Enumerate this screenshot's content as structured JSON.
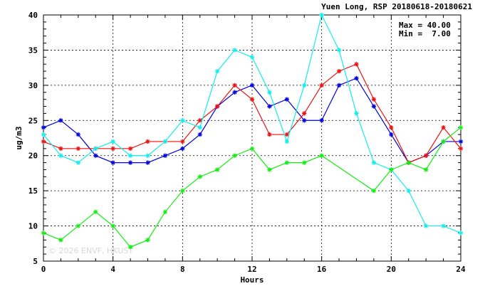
{
  "chart_data": {
    "type": "line",
    "title": "Yuen Long, RSP 20180618-20180621",
    "xlabel": "Hours",
    "ylabel": "ug/m3",
    "xlim": [
      0,
      24
    ],
    "ylim": [
      5,
      40
    ],
    "xticks": [
      0,
      4,
      8,
      12,
      16,
      20,
      24
    ],
    "yticks": [
      5,
      10,
      15,
      20,
      25,
      30,
      35,
      40
    ],
    "grid": true,
    "stats": {
      "max_label": "Max = 40.00",
      "min_label": "Min =  7.00"
    },
    "watermark": "© 2026  ENVF, HKUST",
    "x": [
      0,
      1,
      2,
      3,
      4,
      5,
      6,
      7,
      8,
      9,
      10,
      11,
      12,
      13,
      14,
      15,
      16,
      17,
      18,
      19,
      20,
      21,
      22,
      23,
      24
    ],
    "series": [
      {
        "color": "#0000dd",
        "values": [
          24,
          25,
          23,
          20,
          19,
          19,
          19,
          20,
          21,
          23,
          27,
          29,
          30,
          27,
          28,
          25,
          25,
          30,
          31,
          27,
          23,
          19,
          20,
          22,
          22
        ]
      },
      {
        "color": "#ee1111",
        "values": [
          22,
          21,
          21,
          21,
          21,
          21,
          22,
          22,
          22,
          25,
          27,
          30,
          28,
          23,
          23,
          26,
          30,
          32,
          33,
          28,
          24,
          19,
          20,
          24,
          21
        ]
      },
      {
        "color": "#11eeee",
        "values": [
          23,
          20,
          19,
          21,
          22,
          20,
          20,
          22,
          25,
          24,
          32,
          35,
          34,
          29,
          22,
          30,
          40,
          35,
          26,
          19,
          18,
          15,
          10,
          10,
          9
        ]
      },
      {
        "color": "#11ee11",
        "x": [
          0,
          1,
          2,
          3,
          4,
          5,
          6,
          7,
          8,
          9,
          10,
          11,
          12,
          13,
          14,
          15,
          16,
          19,
          20,
          21,
          22,
          23,
          24
        ],
        "values": [
          9,
          8,
          10,
          12,
          10,
          7,
          8,
          12,
          15,
          17,
          18,
          20,
          21,
          18,
          19,
          19,
          20,
          15,
          18,
          19,
          18,
          22,
          24
        ]
      }
    ]
  }
}
